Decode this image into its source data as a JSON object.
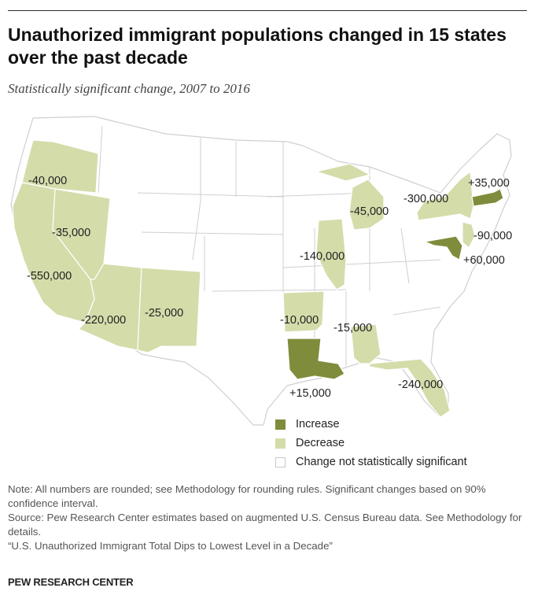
{
  "header": {
    "title": "Unauthorized immigrant populations changed in 15 states over the past decade",
    "subtitle": "Statistically significant change, 2007 to 2016"
  },
  "colors": {
    "increase": "#7f8c3b",
    "decrease": "#d4dcaa",
    "not_significant": "#ffffff",
    "state_border": "#cfcfcf"
  },
  "map": {
    "states": [
      {
        "name": "Oregon",
        "category": "decrease",
        "value_label": "-40,000"
      },
      {
        "name": "California",
        "category": "decrease",
        "value_label": "-550,000"
      },
      {
        "name": "Nevada",
        "category": "decrease",
        "value_label": "-35,000"
      },
      {
        "name": "Arizona",
        "category": "decrease",
        "value_label": "-220,000"
      },
      {
        "name": "New Mexico",
        "category": "decrease",
        "value_label": "-25,000"
      },
      {
        "name": "Arkansas",
        "category": "decrease",
        "value_label": "-10,000"
      },
      {
        "name": "Louisiana",
        "category": "increase",
        "value_label": "+15,000"
      },
      {
        "name": "Illinois",
        "category": "decrease",
        "value_label": "-140,000"
      },
      {
        "name": "Michigan",
        "category": "decrease",
        "value_label": "-45,000"
      },
      {
        "name": "Alabama",
        "category": "decrease",
        "value_label": "-15,000"
      },
      {
        "name": "Florida",
        "category": "decrease",
        "value_label": "-240,000"
      },
      {
        "name": "New York",
        "category": "decrease",
        "value_label": "-300,000"
      },
      {
        "name": "New Jersey",
        "category": "decrease",
        "value_label": "-90,000"
      },
      {
        "name": "Maryland",
        "category": "increase",
        "value_label": "+60,000"
      },
      {
        "name": "Massachusetts",
        "category": "increase",
        "value_label": "+35,000"
      }
    ]
  },
  "legend": {
    "items": [
      {
        "label": "Increase",
        "category": "increase"
      },
      {
        "label": "Decrease",
        "category": "decrease"
      },
      {
        "label": "Change not statistically significant",
        "category": "not_significant"
      }
    ]
  },
  "notes": {
    "note": "Note: All numbers are rounded; see Methodology for rounding rules. Significant changes based on 90% confidence interval.",
    "source": "Source: Pew Research Center estimates based on augmented U.S. Census Bureau data. See Methodology for details.",
    "report": "“U.S. Unauthorized Immigrant Total Dips to Lowest Level in a Decade”"
  },
  "footer": {
    "brand": "PEW RESEARCH CENTER"
  }
}
